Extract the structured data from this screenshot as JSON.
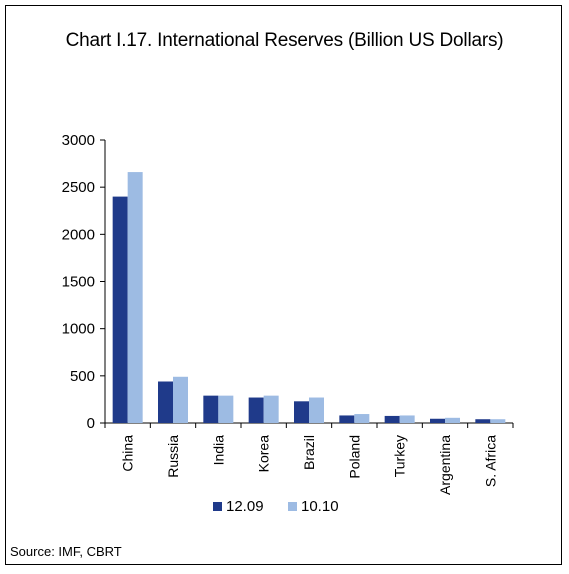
{
  "chart_data": {
    "type": "bar",
    "title": "Chart I.17. International Reserves (Billion US Dollars)",
    "source": "Source: IMF, CBRT",
    "categories": [
      "China",
      "Russia",
      "India",
      "Korea",
      "Brazil",
      "Poland",
      "Turkey",
      "Argentina",
      "S. Africa"
    ],
    "series": [
      {
        "name": "12.09",
        "color": "#1f3a8a",
        "values": [
          2400,
          440,
          290,
          270,
          230,
          80,
          75,
          45,
          40
        ]
      },
      {
        "name": "10.10",
        "color": "#9dbbe3",
        "values": [
          2660,
          490,
          290,
          290,
          270,
          95,
          80,
          55,
          40
        ]
      }
    ],
    "ylim": [
      0,
      3000
    ],
    "yticks": [
      0,
      500,
      1000,
      1500,
      2000,
      2500,
      3000
    ],
    "grid": false,
    "legend": "bottom"
  }
}
